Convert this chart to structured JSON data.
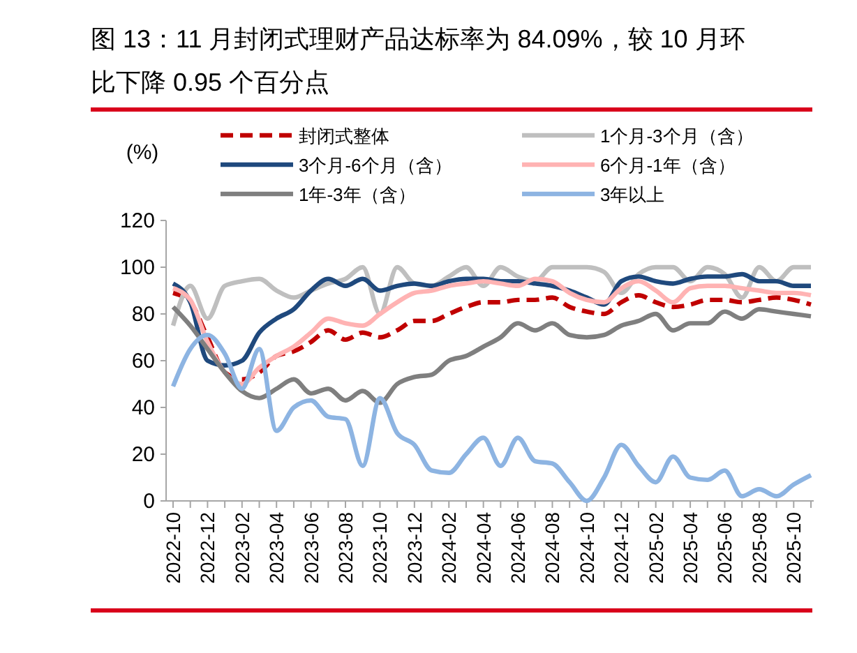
{
  "chart_data": {
    "type": "line",
    "title": "图 13：11 月封闭式理财产品达标率为 84.09%，较 10 月环比下降 0.95 个百分点",
    "ylabel": "(%)",
    "categories": [
      "2022-10",
      null,
      "2022-12",
      null,
      "2023-02",
      null,
      "2023-04",
      null,
      "2023-06",
      null,
      "2023-08",
      null,
      "2023-10",
      null,
      "2023-12",
      null,
      "2024-02",
      null,
      "2024-04",
      null,
      "2024-06",
      null,
      "2024-08",
      null,
      "2024-10",
      null,
      "2024-12",
      null,
      "2025-02",
      null,
      "2025-04",
      null,
      "2025-06",
      null,
      "2025-08",
      null,
      "2025-10",
      null
    ],
    "ylim": [
      0,
      120
    ],
    "yticks": [
      0,
      20,
      40,
      60,
      80,
      100,
      120
    ],
    "grid": false,
    "legend": "top",
    "series": [
      {
        "name": "封闭式整体",
        "color": "#c00000",
        "line_style": "dashed",
        "values": [
          89,
          85,
          70,
          55,
          52,
          55,
          62,
          64,
          68,
          73,
          69,
          72,
          70,
          73,
          77,
          77,
          80,
          83,
          85,
          85,
          86,
          86,
          87,
          83,
          81,
          80,
          85,
          88,
          85,
          83,
          84,
          86,
          86,
          85,
          86,
          87,
          86,
          84
        ]
      },
      {
        "name": "1个月-3个月（含）",
        "color": "#bfbfbf",
        "values": [
          75,
          92,
          78,
          92,
          94,
          95,
          90,
          87,
          90,
          93,
          95,
          100,
          80,
          100,
          93,
          92,
          96,
          100,
          92,
          100,
          96,
          94,
          100,
          100,
          100,
          98,
          89,
          97,
          100,
          100,
          94,
          100,
          97,
          87,
          100,
          94,
          100,
          100
        ]
      },
      {
        "name": "3个月-6个月（含）",
        "color": "#1f497d",
        "values": [
          93,
          85,
          60,
          58,
          60,
          72,
          78,
          82,
          90,
          95,
          92,
          95,
          90,
          92,
          93,
          92,
          94,
          95,
          95,
          94,
          94,
          93,
          92,
          90,
          87,
          84,
          94,
          96,
          94,
          93,
          95,
          96,
          96,
          97,
          94,
          94,
          92,
          92
        ]
      },
      {
        "name": "6个月-1年（含）",
        "color": "#ffb3b3",
        "values": [
          91,
          86,
          68,
          55,
          50,
          57,
          62,
          66,
          72,
          78,
          76,
          75,
          80,
          85,
          89,
          90,
          92,
          93,
          94,
          93,
          92,
          95,
          94,
          89,
          86,
          85,
          91,
          94,
          90,
          85,
          91,
          92,
          92,
          91,
          90,
          89,
          89,
          88
        ]
      },
      {
        "name": "1年-3年（含）",
        "color": "#7f7f7f",
        "values": [
          83,
          75,
          65,
          55,
          47,
          44,
          48,
          52,
          46,
          48,
          43,
          47,
          42,
          50,
          53,
          54,
          60,
          62,
          66,
          70,
          76,
          73,
          76,
          71,
          70,
          71,
          75,
          77,
          80,
          73,
          76,
          76,
          81,
          78,
          82,
          81,
          80,
          79
        ]
      },
      {
        "name": "3年以上",
        "color": "#8db4e2",
        "values": [
          49,
          65,
          71,
          63,
          48,
          65,
          30,
          40,
          43,
          36,
          35,
          15,
          44,
          29,
          24,
          13,
          12,
          20,
          27,
          15,
          27,
          17,
          16,
          8,
          0,
          10,
          24,
          15,
          8,
          19,
          10,
          9,
          13,
          2,
          5,
          2,
          7,
          11
        ]
      }
    ]
  }
}
